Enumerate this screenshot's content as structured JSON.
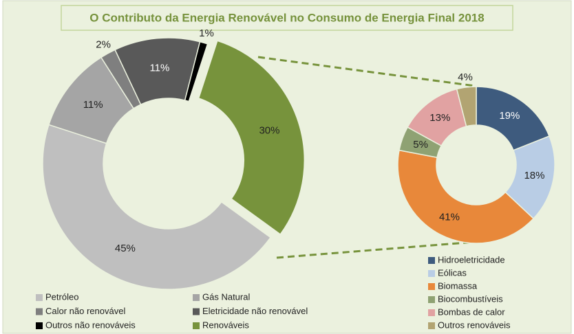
{
  "chart_data": [
    {
      "type": "pie",
      "title": "O Contributo da Energia Renovável no Consumo de Energia Final 2018",
      "categories": [
        "Petróleo",
        "Gás Natural",
        "Calor não renovável",
        "Eletricidade não renovável",
        "Outros não renováveis",
        "Renováveis"
      ],
      "values": [
        45,
        11,
        2,
        11,
        1,
        30
      ],
      "value_labels": [
        "45%",
        "11%",
        "2%",
        "11%",
        "1%",
        "30%"
      ],
      "colors": [
        "#bfbfbf",
        "#a5a5a5",
        "#7f7f7f",
        "#595959",
        "#000000",
        "#77933c"
      ]
    },
    {
      "type": "pie",
      "categories": [
        "Hidroeletricidade",
        "Eólicas",
        "Biomassa",
        "Biocombustíveis",
        "Bombas de calor",
        "Outros renováveis"
      ],
      "values": [
        19,
        18,
        41,
        5,
        13,
        4
      ],
      "value_labels": [
        "19%",
        "18%",
        "41%",
        "5%",
        "13%",
        "4%"
      ],
      "colors": [
        "#3e5b7e",
        "#b9cde5",
        "#e8883a",
        "#8fa273",
        "#e1a2a2",
        "#b2a472"
      ]
    }
  ]
}
